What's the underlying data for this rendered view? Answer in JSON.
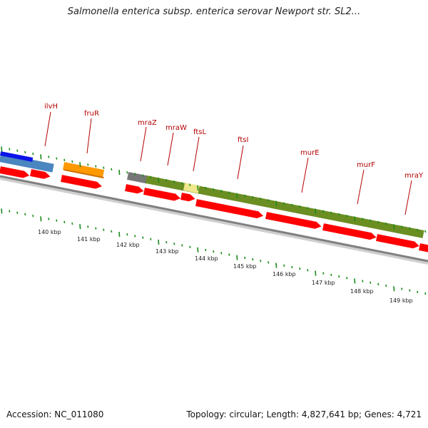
{
  "title": "Salmonella enterica subsp. enterica serovar Newport str. SL2...",
  "footer": {
    "accession": "Accession: NC_011080",
    "stats": "Topology: circular; Length: 4,827,641 bp; Genes: 4,721"
  },
  "genes": [
    {
      "label": "ilvH"
    },
    {
      "label": "fruR"
    },
    {
      "label": "mraZ"
    },
    {
      "label": "mraW"
    },
    {
      "label": "ftsL"
    },
    {
      "label": "ftsI"
    },
    {
      "label": "murE"
    },
    {
      "label": "murF"
    },
    {
      "label": "mraY"
    }
  ],
  "kbp_ticks": [
    "140 kbp",
    "141 kbp",
    "142 kbp",
    "143 kbp",
    "144 kbp",
    "145 kbp",
    "146 kbp",
    "147 kbp",
    "148 kbp",
    "149 kbp"
  ],
  "colors": {
    "cds": "#ff0000",
    "backbone": "#808080",
    "tick": "#1a8a1a",
    "label": "#b30000",
    "blue_feature": "#0a14e6",
    "steelblue_feature": "#4a86c0",
    "orange_feature": "#ff9900",
    "grey_feature": "#777777",
    "olive_feature": "#6b8e23",
    "pale_feature": "#f0e68c"
  }
}
